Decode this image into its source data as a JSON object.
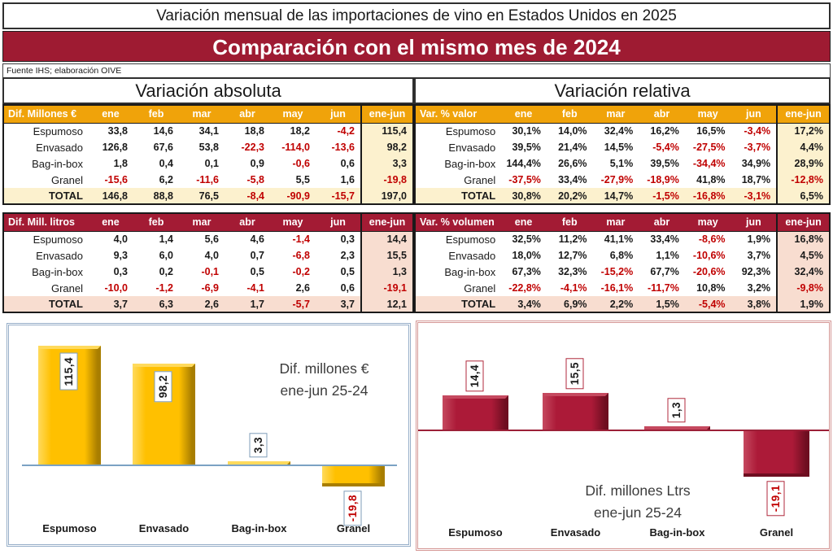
{
  "header": {
    "title": "Variación mensual de las importaciones de vino en Estados Unidos en 2025",
    "banner": "Comparación con el mismo mes de 2024",
    "source": "Fuente IHS; elaboración OIVE"
  },
  "sections": {
    "absolute": "Variación absoluta",
    "relative": "Variación relativa"
  },
  "col_headers": [
    "ene",
    "feb",
    "mar",
    "abr",
    "may",
    "jun",
    "ene-jun"
  ],
  "tables": {
    "abs_value": {
      "corner": "Dif. Millones €",
      "theme": "gold",
      "rows": [
        {
          "label": "Espumoso",
          "values": [
            "33,8",
            "14,6",
            "34,1",
            "18,8",
            "18,2",
            "-4,2",
            "115,4"
          ]
        },
        {
          "label": "Envasado",
          "values": [
            "126,8",
            "67,6",
            "53,8",
            "-22,3",
            "-114,0",
            "-13,6",
            "98,2"
          ]
        },
        {
          "label": "Bag-in-box",
          "values": [
            "1,8",
            "0,4",
            "0,1",
            "0,9",
            "-0,6",
            "0,6",
            "3,3"
          ]
        },
        {
          "label": "Granel",
          "values": [
            "-15,6",
            "6,2",
            "-11,6",
            "-5,8",
            "5,5",
            "1,6",
            "-19,8"
          ]
        },
        {
          "label": "TOTAL",
          "total": true,
          "values": [
            "146,8",
            "88,8",
            "76,5",
            "-8,4",
            "-90,9",
            "-15,7",
            "197,0"
          ]
        }
      ]
    },
    "rel_value": {
      "corner": "Var. % valor",
      "theme": "gold",
      "rows": [
        {
          "label": "Espumoso",
          "values": [
            "30,1%",
            "14,0%",
            "32,4%",
            "16,2%",
            "16,5%",
            "-3,4%",
            "17,2%"
          ]
        },
        {
          "label": "Envasado",
          "values": [
            "39,5%",
            "21,4%",
            "14,5%",
            "-5,4%",
            "-27,5%",
            "-3,7%",
            "4,4%"
          ]
        },
        {
          "label": "Bag-in-box",
          "values": [
            "144,4%",
            "26,6%",
            "5,1%",
            "39,5%",
            "-34,4%",
            "34,9%",
            "28,9%"
          ]
        },
        {
          "label": "Granel",
          "values": [
            "-37,5%",
            "33,4%",
            "-27,9%",
            "-18,9%",
            "41,8%",
            "18,7%",
            "-12,8%"
          ]
        },
        {
          "label": "TOTAL",
          "total": true,
          "values": [
            "30,8%",
            "20,2%",
            "14,7%",
            "-1,5%",
            "-16,8%",
            "-3,1%",
            "6,5%"
          ]
        }
      ]
    },
    "abs_volume": {
      "corner": "Dif. Mill. litros",
      "theme": "red",
      "rows": [
        {
          "label": "Espumoso",
          "values": [
            "4,0",
            "1,4",
            "5,6",
            "4,6",
            "-1,4",
            "0,3",
            "14,4"
          ]
        },
        {
          "label": "Envasado",
          "values": [
            "9,3",
            "6,0",
            "4,0",
            "0,7",
            "-6,8",
            "2,3",
            "15,5"
          ]
        },
        {
          "label": "Bag-in-box",
          "values": [
            "0,3",
            "0,2",
            "-0,1",
            "0,5",
            "-0,2",
            "0,5",
            "1,3"
          ]
        },
        {
          "label": "Granel",
          "values": [
            "-10,0",
            "-1,2",
            "-6,9",
            "-4,1",
            "2,6",
            "0,6",
            "-19,1"
          ]
        },
        {
          "label": "TOTAL",
          "total": true,
          "values": [
            "3,7",
            "6,3",
            "2,6",
            "1,7",
            "-5,7",
            "3,7",
            "12,1"
          ]
        }
      ]
    },
    "rel_volume": {
      "corner": "Var. % volumen",
      "theme": "red",
      "rows": [
        {
          "label": "Espumoso",
          "values": [
            "32,5%",
            "11,2%",
            "41,1%",
            "33,4%",
            "-8,6%",
            "1,9%",
            "16,8%"
          ]
        },
        {
          "label": "Envasado",
          "values": [
            "18,0%",
            "12,7%",
            "6,8%",
            "1,1%",
            "-10,6%",
            "3,7%",
            "4,5%"
          ]
        },
        {
          "label": "Bag-in-box",
          "values": [
            "67,3%",
            "32,3%",
            "-15,2%",
            "67,7%",
            "-20,6%",
            "92,3%",
            "32,4%"
          ]
        },
        {
          "label": "Granel",
          "values": [
            "-22,8%",
            "-4,1%",
            "-16,1%",
            "-11,7%",
            "10,8%",
            "3,2%",
            "-9,8%"
          ]
        },
        {
          "label": "TOTAL",
          "total": true,
          "values": [
            "3,4%",
            "6,9%",
            "2,2%",
            "1,5%",
            "-5,4%",
            "3,8%",
            "1,9%"
          ]
        }
      ]
    }
  },
  "chart_data": [
    {
      "type": "bar",
      "title": "Dif. millones € ene-jun 25-24",
      "annotation_lines": [
        "Dif. millones €",
        "ene-jun 25-24"
      ],
      "categories": [
        "Espumoso",
        "Envasado",
        "Bag-in-box",
        "Granel"
      ],
      "values": [
        115.4,
        98.2,
        3.3,
        -19.8
      ],
      "labels": [
        "115,4",
        "98,2",
        "3,3",
        "-19,8"
      ],
      "ylim": [
        -40,
        130
      ],
      "grid": false,
      "legend": "none",
      "bar_color": "#FFC000",
      "bar_highlight": "#FFDA5C",
      "bar_shadow": "#A87E00",
      "label_border": "#7F9DB9",
      "axis_color": "#7BA2C4",
      "negative_color": "#C00000"
    },
    {
      "type": "bar",
      "title": "Dif. millones Ltrs ene-jun 25-24",
      "annotation_lines": [
        "Dif. millones Ltrs",
        "ene-jun 25-24"
      ],
      "categories": [
        "Espumoso",
        "Envasado",
        "Bag-in-box",
        "Granel"
      ],
      "values": [
        14.4,
        15.5,
        1.3,
        -19.1
      ],
      "labels": [
        "14,4",
        "15,5",
        "1,3",
        "-19,1"
      ],
      "ylim": [
        -30,
        25
      ],
      "grid": false,
      "legend": "none",
      "bar_color": "#AC1A38",
      "bar_highlight": "#C5495F",
      "bar_shadow": "#6E0E20",
      "label_border": "#B02A3C",
      "axis_color": "#9C2038",
      "negative_color": "#C00000"
    }
  ],
  "colors": {
    "banner_red": "#9E1B32",
    "table_gold": "#F0A30A",
    "table_cream": "#FCF1CE",
    "table_dark_red": "#A31B34",
    "table_pink": "#F8DDD0",
    "negative_text": "#C00000"
  }
}
